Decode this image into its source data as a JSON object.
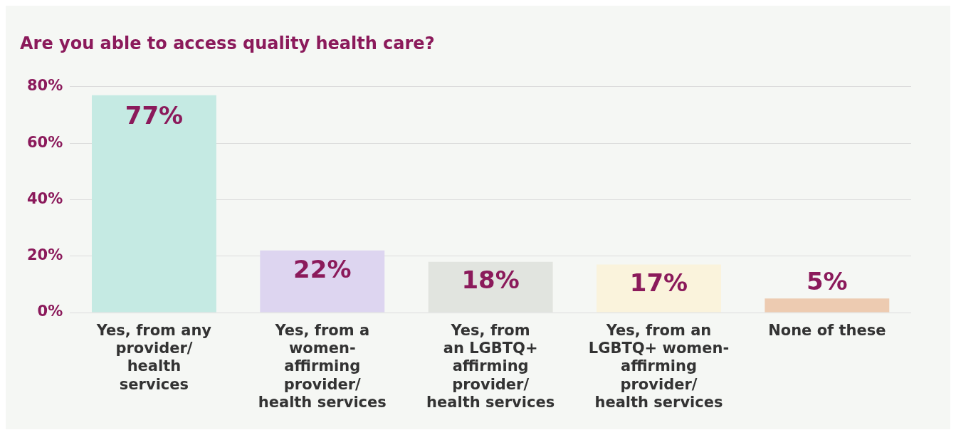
{
  "chart_data": {
    "type": "bar",
    "title": "Are you able to access quality health care?",
    "categories": [
      "Yes, from any\nprovider/\nhealth\nservices",
      "Yes, from a\nwomen-\naffirming\nprovider/\nhealth services",
      "Yes, from\nan LGBTQ+\naffirming\nprovider/\nhealth services",
      "Yes, from an\nLGBTQ+ women-\naffirming\nprovider/\nhealth services",
      "None of these"
    ],
    "values": [
      77,
      22,
      18,
      17,
      5
    ],
    "colors": [
      "#c5eae3",
      "#ddd5f0",
      "#e1e4df",
      "#faf3dc",
      "#edcbb1"
    ],
    "value_labels": [
      "77%",
      "22%",
      "18%",
      "17%",
      "5%"
    ],
    "ylim": [
      0,
      80
    ],
    "yticks": [
      {
        "value": 0,
        "label": "0%"
      },
      {
        "value": 20,
        "label": "20%"
      },
      {
        "value": 40,
        "label": "40%"
      },
      {
        "value": 60,
        "label": "60%"
      },
      {
        "value": 80,
        "label": "80%"
      }
    ],
    "grid": "y",
    "legend": false
  }
}
